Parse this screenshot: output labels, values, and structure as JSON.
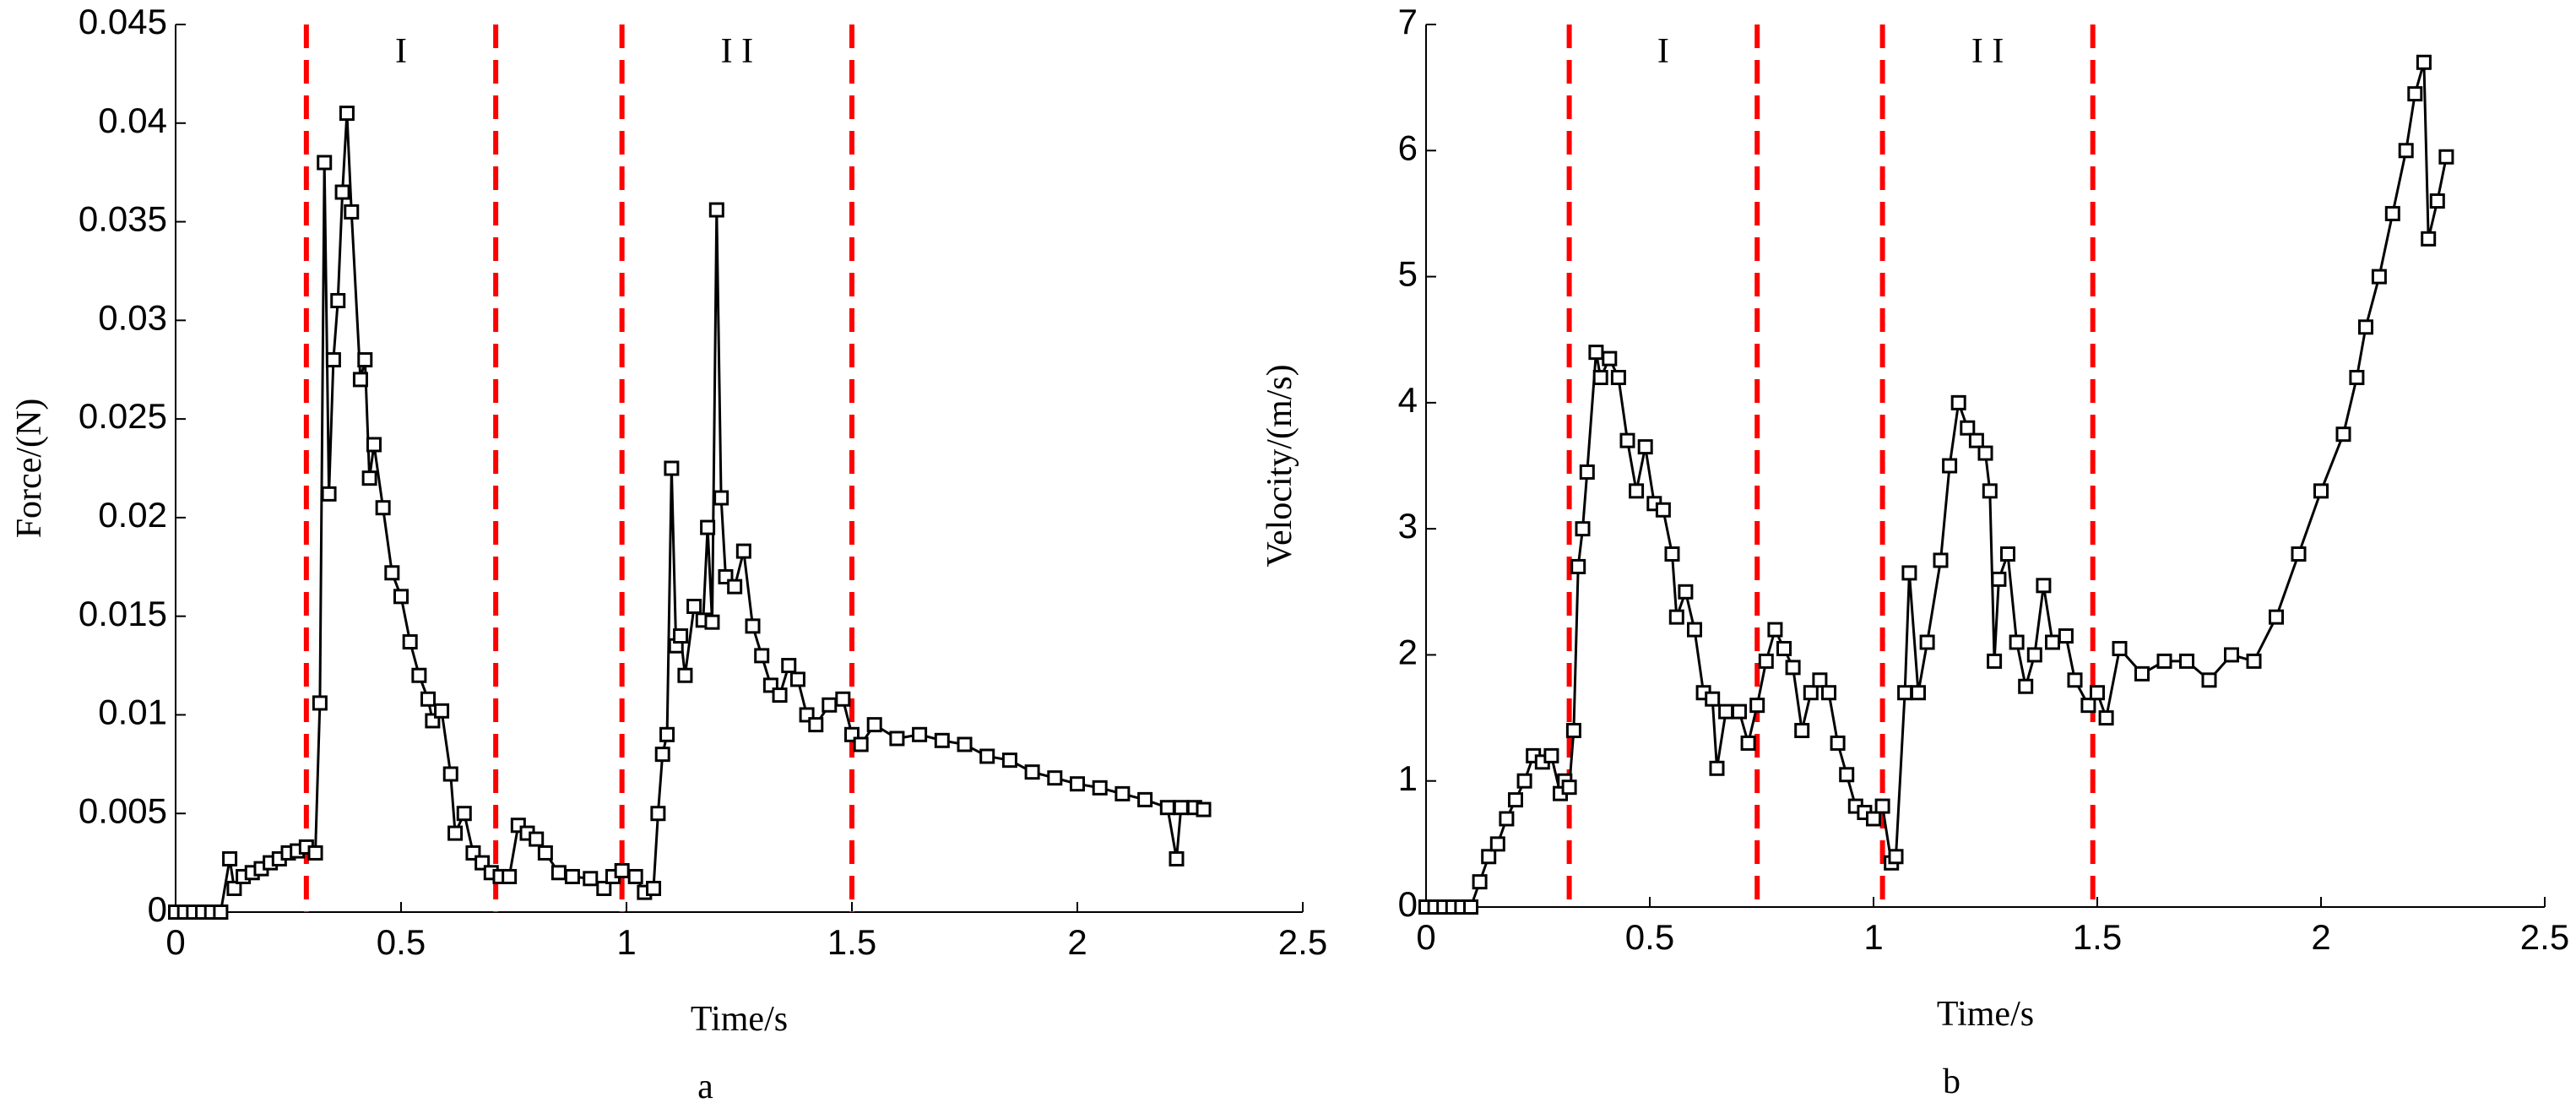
{
  "chart_data": [
    {
      "type": "line",
      "label": "a",
      "xlabel": "Time/s",
      "ylabel": "Force/(N)",
      "color": "#000000",
      "vline_color": "#ff0000",
      "annotations": [
        "I",
        "I I"
      ],
      "vlines": [
        0.29,
        0.71,
        0.99,
        1.5
      ],
      "xlim": [
        0,
        2.5
      ],
      "xticks": [
        0,
        0.5,
        1,
        1.5,
        2,
        2.5
      ],
      "ylim": [
        0,
        0.045
      ],
      "yticks": [
        0,
        0.005,
        0.01,
        0.015,
        0.02,
        0.025,
        0.03,
        0.035,
        0.04,
        0.045
      ],
      "x": [
        0,
        0.02,
        0.04,
        0.06,
        0.08,
        0.1,
        0.12,
        0.13,
        0.15,
        0.17,
        0.19,
        0.21,
        0.23,
        0.25,
        0.27,
        0.29,
        0.31,
        0.32,
        0.33,
        0.34,
        0.35,
        0.36,
        0.37,
        0.38,
        0.39,
        0.41,
        0.42,
        0.43,
        0.44,
        0.46,
        0.48,
        0.5,
        0.52,
        0.54,
        0.56,
        0.57,
        0.59,
        0.61,
        0.62,
        0.64,
        0.66,
        0.68,
        0.7,
        0.72,
        0.74,
        0.76,
        0.78,
        0.8,
        0.82,
        0.85,
        0.88,
        0.92,
        0.95,
        0.97,
        0.99,
        1.02,
        1.04,
        1.06,
        1.07,
        1.08,
        1.09,
        1.1,
        1.11,
        1.12,
        1.13,
        1.15,
        1.17,
        1.18,
        1.19,
        1.2,
        1.21,
        1.22,
        1.24,
        1.26,
        1.28,
        1.3,
        1.32,
        1.34,
        1.36,
        1.38,
        1.4,
        1.42,
        1.45,
        1.48,
        1.5,
        1.52,
        1.55,
        1.6,
        1.65,
        1.7,
        1.75,
        1.8,
        1.85,
        1.9,
        1.95,
        2.0,
        2.05,
        2.1,
        2.15,
        2.2,
        2.22,
        2.23,
        2.26,
        2.28
      ],
      "values": [
        0,
        0,
        0,
        0,
        0,
        0,
        0.0027,
        0.0012,
        0.0018,
        0.002,
        0.0022,
        0.0025,
        0.0027,
        0.003,
        0.0031,
        0.0033,
        0.003,
        0.0106,
        0.038,
        0.0212,
        0.028,
        0.031,
        0.0365,
        0.0405,
        0.0355,
        0.027,
        0.028,
        0.022,
        0.0237,
        0.0205,
        0.0172,
        0.016,
        0.0137,
        0.012,
        0.0108,
        0.0097,
        0.0102,
        0.007,
        0.004,
        0.005,
        0.003,
        0.0025,
        0.002,
        0.0018,
        0.0018,
        0.0044,
        0.004,
        0.0037,
        0.003,
        0.002,
        0.0018,
        0.0017,
        0.0012,
        0.0018,
        0.0021,
        0.0018,
        0.001,
        0.0012,
        0.005,
        0.008,
        0.009,
        0.0225,
        0.0135,
        0.014,
        0.012,
        0.0155,
        0.0148,
        0.0195,
        0.0147,
        0.0356,
        0.021,
        0.017,
        0.0165,
        0.0183,
        0.0145,
        0.013,
        0.0115,
        0.011,
        0.0125,
        0.0118,
        0.01,
        0.0095,
        0.0105,
        0.0108,
        0.009,
        0.0085,
        0.0095,
        0.0088,
        0.009,
        0.0087,
        0.0085,
        0.0079,
        0.0077,
        0.0071,
        0.0068,
        0.0065,
        0.0063,
        0.006,
        0.0057,
        0.0053,
        0.0027,
        0.0053,
        0.0053,
        0.0052
      ]
    },
    {
      "type": "line",
      "label": "b",
      "xlabel": "Time/s",
      "ylabel": "Velocity/(m/s)",
      "color": "#000000",
      "vline_color": "#ff0000",
      "annotations": [
        "I",
        "I I"
      ],
      "vlines": [
        0.32,
        0.74,
        1.02,
        1.49
      ],
      "xlim": [
        0,
        2.5
      ],
      "xticks": [
        0,
        0.5,
        1,
        1.5,
        2,
        2.5
      ],
      "ylim": [
        0,
        7
      ],
      "yticks": [
        0,
        1,
        2,
        3,
        4,
        5,
        6,
        7
      ],
      "x": [
        0,
        0.02,
        0.04,
        0.06,
        0.08,
        0.1,
        0.12,
        0.14,
        0.16,
        0.18,
        0.2,
        0.22,
        0.24,
        0.26,
        0.28,
        0.3,
        0.31,
        0.32,
        0.33,
        0.34,
        0.35,
        0.36,
        0.38,
        0.39,
        0.41,
        0.43,
        0.45,
        0.47,
        0.49,
        0.51,
        0.53,
        0.55,
        0.56,
        0.58,
        0.6,
        0.62,
        0.64,
        0.65,
        0.67,
        0.7,
        0.72,
        0.74,
        0.76,
        0.78,
        0.8,
        0.82,
        0.84,
        0.86,
        0.88,
        0.9,
        0.92,
        0.94,
        0.96,
        0.98,
        1.0,
        1.02,
        1.04,
        1.05,
        1.07,
        1.08,
        1.1,
        1.12,
        1.15,
        1.17,
        1.19,
        1.21,
        1.23,
        1.25,
        1.26,
        1.27,
        1.28,
        1.3,
        1.32,
        1.34,
        1.36,
        1.38,
        1.4,
        1.43,
        1.45,
        1.48,
        1.5,
        1.52,
        1.55,
        1.6,
        1.65,
        1.7,
        1.75,
        1.8,
        1.85,
        1.9,
        1.95,
        2.0,
        2.05,
        2.08,
        2.1,
        2.13,
        2.16,
        2.19,
        2.21,
        2.23,
        2.24,
        2.26,
        2.28
      ],
      "values": [
        0,
        0,
        0,
        0,
        0,
        0,
        0.2,
        0.4,
        0.5,
        0.7,
        0.85,
        1.0,
        1.2,
        1.15,
        1.2,
        0.9,
        1.0,
        0.95,
        1.4,
        2.7,
        3.0,
        3.45,
        4.4,
        4.2,
        4.35,
        4.2,
        3.7,
        3.3,
        3.65,
        3.2,
        3.15,
        2.8,
        2.3,
        2.5,
        2.2,
        1.7,
        1.65,
        1.1,
        1.55,
        1.55,
        1.3,
        1.6,
        1.95,
        2.2,
        2.05,
        1.9,
        1.4,
        1.7,
        1.8,
        1.7,
        1.3,
        1.05,
        0.8,
        0.75,
        0.7,
        0.8,
        0.35,
        0.4,
        1.7,
        2.65,
        1.7,
        2.1,
        2.75,
        3.5,
        4.0,
        3.8,
        3.7,
        3.6,
        3.3,
        1.95,
        2.6,
        2.8,
        2.1,
        1.75,
        2.0,
        2.55,
        2.1,
        2.15,
        1.8,
        1.6,
        1.7,
        1.5,
        2.05,
        1.85,
        1.95,
        1.95,
        1.8,
        2.0,
        1.95,
        2.3,
        2.8,
        3.3,
        3.75,
        4.2,
        4.6,
        5.0,
        5.5,
        6.0,
        6.45,
        6.7,
        5.3,
        5.6,
        5.95
      ]
    }
  ]
}
